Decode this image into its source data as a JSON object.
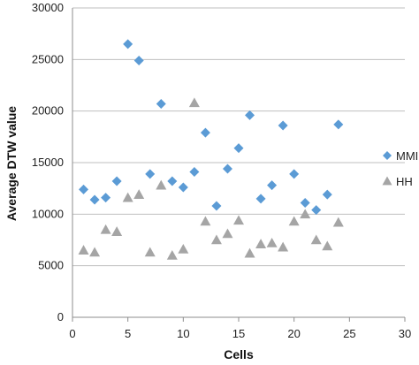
{
  "chart_data": {
    "type": "scatter",
    "xlabel": "Cells",
    "ylabel": "Average DTW value",
    "xlim": [
      0,
      30
    ],
    "ylim": [
      0,
      30000
    ],
    "xticks": [
      0,
      5,
      10,
      15,
      20,
      25,
      30
    ],
    "yticks": [
      0,
      5000,
      10000,
      15000,
      20000,
      25000,
      30000
    ],
    "grid": "horizontal",
    "legend_position": "right",
    "series": [
      {
        "name": "MMI",
        "marker": "diamond",
        "color": "#5B9BD5",
        "x": [
          1,
          2,
          3,
          4,
          5,
          6,
          7,
          8,
          9,
          10,
          11,
          12,
          13,
          14,
          15,
          16,
          17,
          18,
          19,
          20,
          21,
          22,
          23,
          24
        ],
        "y": [
          12400,
          11400,
          11600,
          13200,
          26500,
          24900,
          13900,
          20700,
          13200,
          12600,
          14100,
          17900,
          10800,
          14400,
          16400,
          19600,
          11500,
          12800,
          18600,
          13900,
          11100,
          10400,
          11900,
          18700
        ]
      },
      {
        "name": "HH",
        "marker": "triangle",
        "color": "#A5A5A5",
        "x": [
          1,
          2,
          3,
          4,
          5,
          6,
          7,
          8,
          9,
          10,
          11,
          12,
          13,
          14,
          15,
          16,
          17,
          18,
          19,
          20,
          21,
          22,
          23,
          24
        ],
        "y": [
          6500,
          6300,
          8500,
          8300,
          11600,
          11900,
          6300,
          12800,
          6000,
          6600,
          20800,
          9300,
          7500,
          8100,
          9400,
          6200,
          7100,
          7200,
          6800,
          9300,
          10000,
          7500,
          6900,
          9200
        ]
      }
    ]
  }
}
